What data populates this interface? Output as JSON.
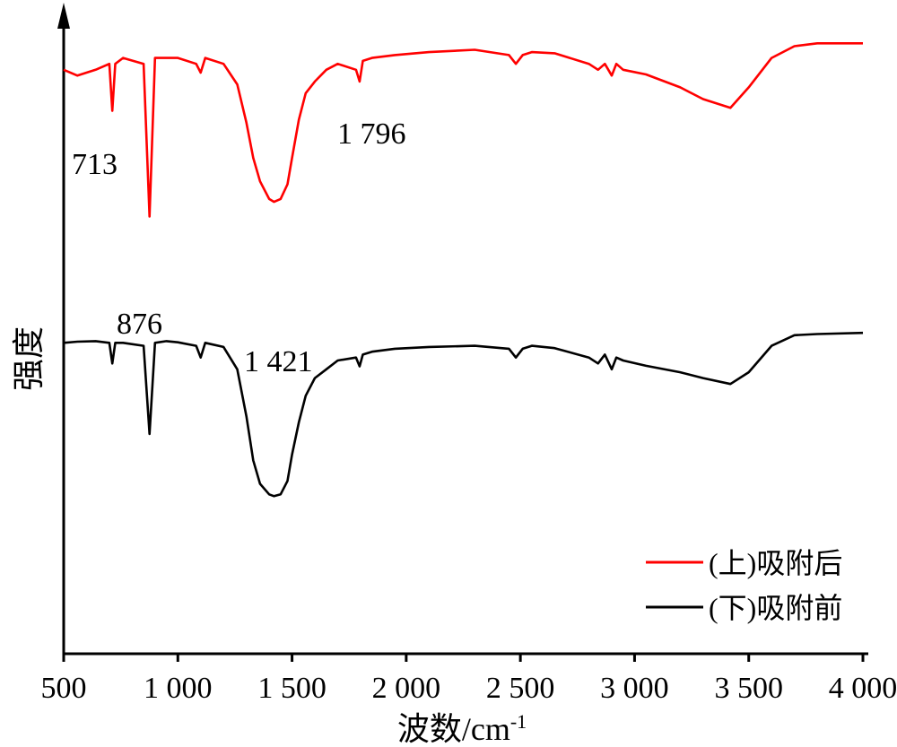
{
  "chart_data": {
    "type": "line",
    "xlabel": "波数/cm",
    "xlabel_sup": "-1",
    "ylabel": "强度",
    "xlim": [
      500,
      4000
    ],
    "x_tick_values": [
      500,
      1000,
      1500,
      2000,
      2500,
      3000,
      3500,
      4000
    ],
    "x_tick_labels": [
      "500",
      "1 000",
      "1 500",
      "2 000",
      "2 500",
      "3 000",
      "3 500",
      "4 000"
    ],
    "y_ticks": "none",
    "grid": false,
    "legend_position": "bottom-right",
    "series": [
      {
        "name": "(上)吸附后",
        "color": "#ff0000",
        "x": [
          500,
          560,
          640,
          700,
          713,
          726,
          760,
          850,
          876,
          900,
          950,
          1000,
          1080,
          1100,
          1120,
          1200,
          1260,
          1300,
          1330,
          1360,
          1400,
          1421,
          1450,
          1480,
          1500,
          1530,
          1560,
          1600,
          1650,
          1700,
          1780,
          1796,
          1810,
          1850,
          1950,
          2100,
          2300,
          2450,
          2480,
          2510,
          2550,
          2650,
          2800,
          2840,
          2870,
          2900,
          2920,
          2950,
          3050,
          3200,
          3300,
          3420,
          3500,
          3600,
          3700,
          3800,
          4000
        ],
        "y": [
          95.0,
          94.0,
          95.0,
          96.0,
          88.0,
          96.0,
          97.0,
          96.0,
          70.0,
          97.0,
          97.0,
          97.0,
          96.0,
          94.5,
          97.0,
          96.0,
          92.5,
          86.0,
          80.0,
          76.0,
          73.0,
          72.5,
          73.0,
          75.5,
          80.0,
          86.5,
          91.0,
          93.0,
          95.0,
          96.0,
          95.0,
          93.0,
          96.5,
          97.0,
          97.5,
          98.0,
          98.4,
          97.5,
          96.0,
          97.5,
          98.0,
          97.8,
          96.0,
          95.0,
          96.0,
          94.0,
          96.0,
          95.0,
          94.2,
          92.0,
          90.0,
          88.5,
          92.0,
          97.0,
          99.0,
          99.5,
          99.5
        ]
      },
      {
        "name": "(下)吸附前",
        "color": "#000000",
        "x": [
          500,
          560,
          640,
          700,
          713,
          726,
          760,
          850,
          876,
          900,
          950,
          1000,
          1080,
          1100,
          1120,
          1200,
          1260,
          1300,
          1330,
          1360,
          1400,
          1421,
          1450,
          1480,
          1500,
          1530,
          1560,
          1600,
          1650,
          1700,
          1780,
          1796,
          1810,
          1850,
          1950,
          2100,
          2300,
          2450,
          2480,
          2510,
          2550,
          2650,
          2800,
          2840,
          2870,
          2900,
          2920,
          2950,
          3050,
          3200,
          3300,
          3420,
          3500,
          3600,
          3700,
          3800,
          4000
        ],
        "y": [
          48.5,
          48.7,
          48.8,
          48.5,
          45.0,
          48.5,
          48.5,
          48.0,
          33.0,
          48.5,
          48.8,
          48.6,
          48.0,
          46.0,
          48.5,
          47.8,
          44.0,
          36.0,
          28.5,
          24.5,
          22.7,
          22.4,
          22.7,
          25.0,
          29.5,
          35.0,
          39.5,
          42.5,
          44.0,
          45.5,
          46.0,
          44.5,
          46.5,
          47.0,
          47.5,
          47.8,
          48.0,
          47.5,
          46.0,
          47.5,
          48.0,
          47.6,
          46.0,
          45.0,
          46.5,
          44.0,
          46.0,
          45.5,
          44.6,
          43.5,
          42.5,
          41.5,
          43.5,
          48.0,
          49.8,
          50.0,
          50.2
        ]
      }
    ],
    "annotations": [
      {
        "text": "713",
        "x": 713,
        "series": 0
      },
      {
        "text": "876",
        "x": 876,
        "series": 0
      },
      {
        "text": "1 421",
        "x": 1421,
        "series": 0
      },
      {
        "text": "1 796",
        "x": 1796,
        "series": 0
      }
    ]
  }
}
